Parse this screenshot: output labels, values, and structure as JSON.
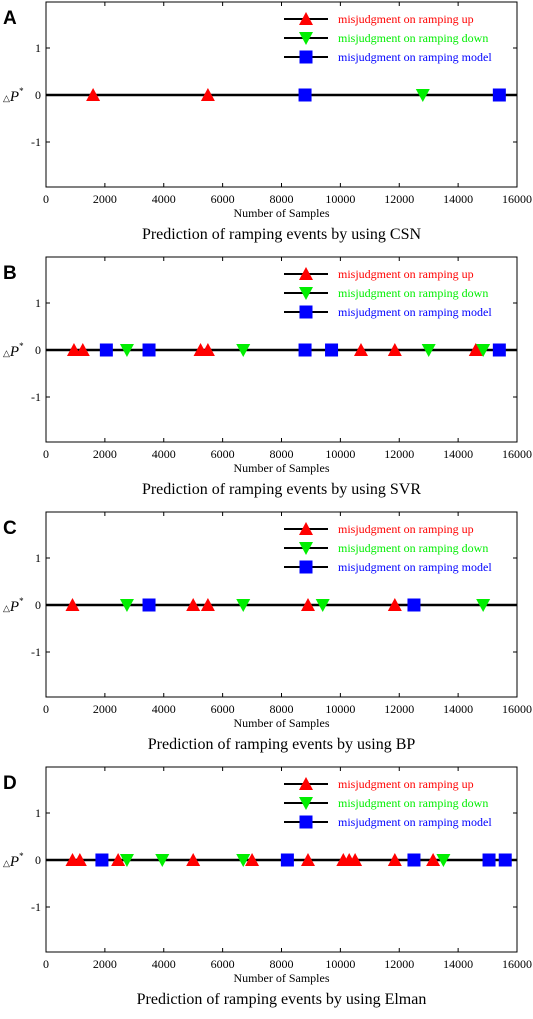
{
  "figure": {
    "y_label": {
      "delta": "△",
      "symbol": "P",
      "sup": "*"
    },
    "colors": {
      "up": "#ff0000",
      "down": "#00ee00",
      "model": "#0000ff",
      "axis": "#000000"
    }
  },
  "chart_data": [
    {
      "type": "scatter",
      "panel": "A",
      "caption": "Prediction of ramping events by using CSN",
      "xlabel": "Number of Samples",
      "xlim": [
        0,
        16000
      ],
      "ylim": [
        -2,
        2
      ],
      "x_ticks": [
        "0",
        "2000",
        "4000",
        "6000",
        "8000",
        "10000",
        "12000",
        "14000",
        "16000"
      ],
      "y_ticks": [
        "1",
        "0",
        "-1"
      ],
      "baseline": 0,
      "legend_position": "top-right",
      "series": [
        {
          "name": "misjudgment on ramping up",
          "marker": "triangle-up",
          "color": "#ff0000",
          "x": [
            1600,
            5500
          ],
          "y": [
            0,
            0
          ]
        },
        {
          "name": "misjudgment on ramping down",
          "marker": "triangle-down",
          "color": "#00ee00",
          "x": [
            12800
          ],
          "y": [
            0
          ]
        },
        {
          "name": "misjudgment on ramping model",
          "marker": "square",
          "color": "#0000ff",
          "x": [
            8800,
            15400
          ],
          "y": [
            0,
            0
          ]
        }
      ]
    },
    {
      "type": "scatter",
      "panel": "B",
      "caption": "Prediction of ramping events by using SVR",
      "xlabel": "Number of Samples",
      "xlim": [
        0,
        16000
      ],
      "ylim": [
        -2,
        2
      ],
      "x_ticks": [
        "0",
        "2000",
        "4000",
        "6000",
        "8000",
        "10000",
        "12000",
        "14000",
        "16000"
      ],
      "y_ticks": [
        "1",
        "0",
        "-1"
      ],
      "baseline": 0,
      "legend_position": "top-right",
      "series": [
        {
          "name": "misjudgment on ramping up",
          "marker": "triangle-up",
          "color": "#ff0000",
          "x": [
            950,
            1250,
            5250,
            5500,
            10700,
            11850,
            14600
          ],
          "y": [
            0,
            0,
            0,
            0,
            0,
            0,
            0
          ]
        },
        {
          "name": "misjudgment on ramping down",
          "marker": "triangle-down",
          "color": "#00ee00",
          "x": [
            2750,
            6700,
            13000,
            14850
          ],
          "y": [
            0,
            0,
            0,
            0
          ]
        },
        {
          "name": "misjudgment on ramping model",
          "marker": "square",
          "color": "#0000ff",
          "x": [
            2050,
            3500,
            8800,
            9700,
            15400
          ],
          "y": [
            0,
            0,
            0,
            0,
            0
          ]
        }
      ]
    },
    {
      "type": "scatter",
      "panel": "C",
      "caption": "Prediction of ramping events by using BP",
      "xlabel": "Number of Samples",
      "xlim": [
        0,
        16000
      ],
      "ylim": [
        -2,
        2
      ],
      "x_ticks": [
        "0",
        "2000",
        "4000",
        "6000",
        "8000",
        "10000",
        "12000",
        "14000",
        "16000"
      ],
      "y_ticks": [
        "1",
        "0",
        "-1"
      ],
      "baseline": 0,
      "legend_position": "top-right",
      "series": [
        {
          "name": "misjudgment on ramping up",
          "marker": "triangle-up",
          "color": "#ff0000",
          "x": [
            900,
            5000,
            5500,
            8900,
            11850
          ],
          "y": [
            0,
            0,
            0,
            0,
            0
          ]
        },
        {
          "name": "misjudgment on ramping down",
          "marker": "triangle-down",
          "color": "#00ee00",
          "x": [
            2750,
            6700,
            9400,
            14850
          ],
          "y": [
            0,
            0,
            0,
            0
          ]
        },
        {
          "name": "misjudgment on ramping model",
          "marker": "square",
          "color": "#0000ff",
          "x": [
            3500,
            12500
          ],
          "y": [
            0,
            0
          ]
        }
      ]
    },
    {
      "type": "scatter",
      "panel": "D",
      "caption": "Prediction of ramping events by using Elman",
      "xlabel": "Number of Samples",
      "xlim": [
        0,
        16000
      ],
      "ylim": [
        -2,
        2
      ],
      "x_ticks": [
        "0",
        "2000",
        "4000",
        "6000",
        "8000",
        "10000",
        "12000",
        "14000",
        "16000"
      ],
      "y_ticks": [
        "1",
        "0",
        "-1"
      ],
      "baseline": 0,
      "legend_position": "top-right",
      "series": [
        {
          "name": "misjudgment on ramping up",
          "marker": "triangle-up",
          "color": "#ff0000",
          "x": [
            900,
            1150,
            2450,
            5000,
            7000,
            8900,
            10100,
            10300,
            10500,
            11850,
            13150
          ],
          "y": [
            0,
            0,
            0,
            0,
            0,
            0,
            0,
            0,
            0,
            0,
            0
          ]
        },
        {
          "name": "misjudgment on ramping down",
          "marker": "triangle-down",
          "color": "#00ee00",
          "x": [
            2750,
            3950,
            6700,
            13500
          ],
          "y": [
            0,
            0,
            0,
            0
          ]
        },
        {
          "name": "misjudgment on ramping model",
          "marker": "square",
          "color": "#0000ff",
          "x": [
            1900,
            8200,
            12500,
            15050,
            15600
          ],
          "y": [
            0,
            0,
            0,
            0,
            0
          ]
        }
      ]
    }
  ]
}
